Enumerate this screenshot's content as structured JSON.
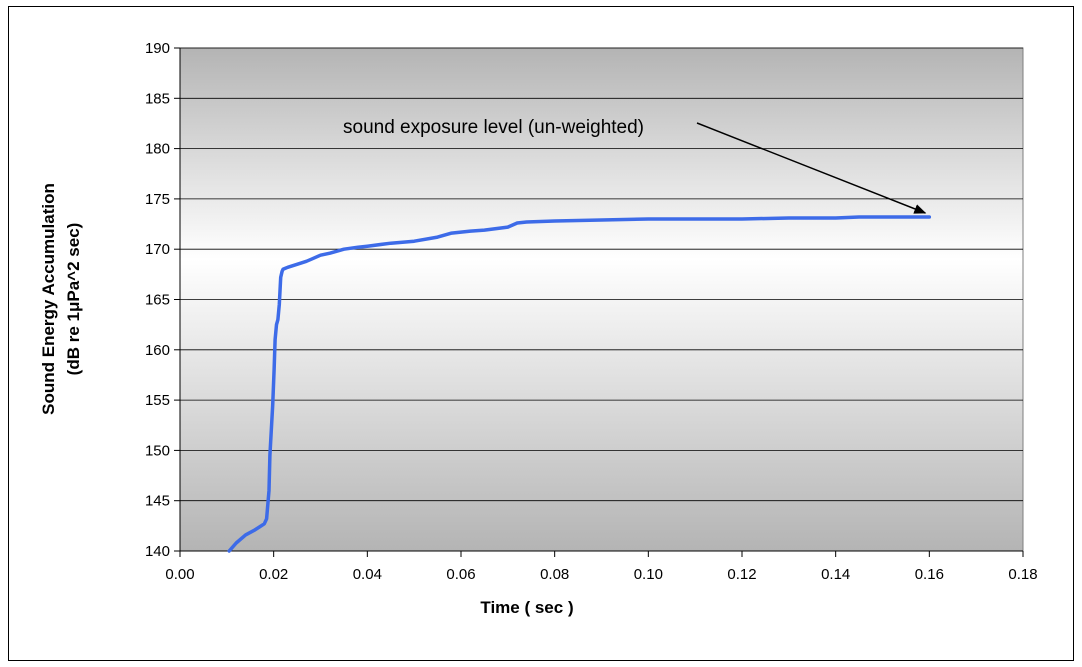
{
  "chart_data": {
    "type": "line",
    "title": "",
    "xlabel": "Time ( sec )",
    "ylabel_line1": "Sound Energy Accumulation",
    "ylabel_line2": "(dB re 1μPa^2 sec)",
    "xlim": [
      0,
      0.18
    ],
    "ylim": [
      140,
      190
    ],
    "xticks": [
      "0.00",
      "0.02",
      "0.04",
      "0.06",
      "0.08",
      "0.10",
      "0.12",
      "0.14",
      "0.16",
      "0.18"
    ],
    "yticks": [
      "140",
      "145",
      "150",
      "155",
      "160",
      "165",
      "170",
      "175",
      "180",
      "185",
      "190"
    ],
    "grid": true,
    "legend": "none",
    "series_color": "#3d6be8",
    "plot_background": "gradient gray-white",
    "annotation": {
      "text": "sound exposure level (un-weighted)",
      "points_to": [
        0.16,
        173.2
      ]
    },
    "series": [
      {
        "x": [
          0.0105,
          0.012,
          0.014,
          0.016,
          0.017,
          0.018,
          0.0185,
          0.019,
          0.0192,
          0.0195,
          0.0198,
          0.0201,
          0.0203,
          0.0206,
          0.0209,
          0.0212,
          0.0215,
          0.0218,
          0.022,
          0.0225,
          0.023,
          0.025,
          0.027,
          0.028,
          0.03,
          0.032,
          0.035,
          0.038,
          0.04,
          0.045,
          0.05,
          0.055,
          0.058,
          0.06,
          0.062,
          0.065,
          0.07,
          0.072,
          0.074,
          0.08,
          0.09,
          0.1,
          0.11,
          0.12,
          0.13,
          0.14,
          0.145,
          0.15,
          0.16
        ],
        "y": [
          140,
          140.8,
          141.6,
          142.1,
          142.4,
          142.7,
          143.2,
          146,
          149.5,
          152,
          154.5,
          158,
          161,
          162.5,
          163,
          164.5,
          167.2,
          167.8,
          168,
          168.1,
          168.2,
          168.5,
          168.8,
          169.0,
          169.4,
          169.6,
          170.0,
          170.2,
          170.3,
          170.6,
          170.8,
          171.2,
          171.6,
          171.7,
          171.8,
          171.9,
          172.2,
          172.6,
          172.7,
          172.8,
          172.9,
          173.0,
          173.0,
          173.0,
          173.1,
          173.1,
          173.2,
          173.2,
          173.2
        ]
      }
    ]
  }
}
